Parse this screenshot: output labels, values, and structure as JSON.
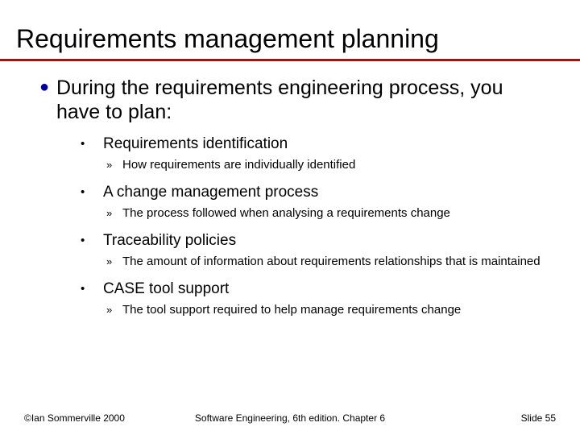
{
  "colors": {
    "rule": "#cc0000",
    "bullet1": "#000099",
    "text": "#000000",
    "background": "#ffffff"
  },
  "title": "Requirements management planning",
  "intro": {
    "text": "During the requirements engineering process, you have to plan:"
  },
  "items": [
    {
      "label": "Requirements identification",
      "sub": "How requirements are individually identified"
    },
    {
      "label": "A change management process",
      "sub": "The process followed when analysing a requirements change"
    },
    {
      "label": "Traceability policies",
      "sub": "The amount of information about requirements relationships that is maintained"
    },
    {
      "label": "CASE tool support",
      "sub": "The tool support required to help manage requirements change"
    }
  ],
  "footer": {
    "left": "©Ian Sommerville 2000",
    "center": "Software Engineering, 6th edition. Chapter 6",
    "right": "Slide 55"
  },
  "typography": {
    "title_fontsize": 32,
    "lev1_fontsize": 25,
    "lev2_fontsize": 19,
    "lev3_fontsize": 15,
    "footer_fontsize": 12
  }
}
